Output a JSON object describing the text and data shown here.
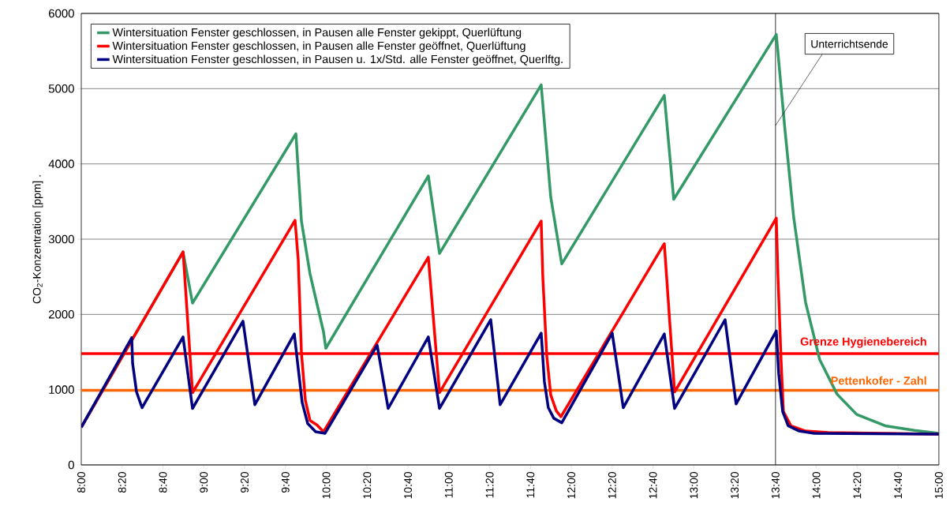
{
  "chart_data": {
    "type": "line",
    "ylabel": "CO$_{2}$-Konzentration [ppm] .",
    "xlim": [
      8,
      15
    ],
    "ylim": [
      0,
      6000
    ],
    "xticks": [
      {
        "value": 8,
        "label": "8:00"
      },
      {
        "value": 8.3333,
        "label": "8:20"
      },
      {
        "value": 8.6667,
        "label": "8:40"
      },
      {
        "value": 9,
        "label": "9:00"
      },
      {
        "value": 9.3333,
        "label": "9:20"
      },
      {
        "value": 9.6667,
        "label": "9:40"
      },
      {
        "value": 10,
        "label": "10:00"
      },
      {
        "value": 10.3333,
        "label": "10:20"
      },
      {
        "value": 10.6667,
        "label": "10:40"
      },
      {
        "value": 11,
        "label": "11:00"
      },
      {
        "value": 11.3333,
        "label": "11:20"
      },
      {
        "value": 11.6667,
        "label": "11:40"
      },
      {
        "value": 12,
        "label": "12:00"
      },
      {
        "value": 12.3333,
        "label": "12:20"
      },
      {
        "value": 12.6667,
        "label": "12:40"
      },
      {
        "value": 13,
        "label": "13:00"
      },
      {
        "value": 13.3333,
        "label": "13:20"
      },
      {
        "value": 13.6667,
        "label": "13:40"
      },
      {
        "value": 14,
        "label": "14:00"
      },
      {
        "value": 14.3333,
        "label": "14:20"
      },
      {
        "value": 14.6667,
        "label": "14:40"
      },
      {
        "value": 15,
        "label": "15:00"
      }
    ],
    "yticks": [
      0,
      1000,
      2000,
      3000,
      4000,
      5000,
      6000
    ],
    "grid": "y",
    "legend": "top left",
    "marker": "none",
    "line_style": "solid",
    "series": [
      {
        "name": "Wintersituation Fenster geschlossen, in Pausen alle Fenster gekippt, Querlüftung",
        "color": "#339966",
        "x": [
          8,
          8.831,
          8.908,
          9.752,
          9.797,
          9.867,
          9.977,
          9.996,
          10.833,
          10.924,
          11.754,
          11.832,
          11.922,
          12.759,
          12.836,
          13.673,
          13.744,
          13.815,
          13.912,
          14.027,
          14.169,
          14.33,
          14.562,
          14.8,
          15
        ],
        "values": [
          500,
          2830,
          2150,
          4400,
          3240,
          2540,
          1770,
          1550,
          3840,
          2810,
          5050,
          3560,
          2670,
          4910,
          3530,
          5720,
          4450,
          3290,
          2160,
          1400,
          940,
          670,
          520,
          460,
          420
        ]
      },
      {
        "name": "Wintersituation Fenster geschlossen, in Pausen alle Fenster geöffnet, Querlüftung",
        "color": "#ff0000",
        "x": [
          8,
          8.831,
          8.908,
          9.745,
          9.771,
          9.797,
          9.829,
          9.867,
          9.925,
          9.977,
          10.833,
          10.924,
          11.754,
          11.767,
          11.799,
          11.832,
          11.877,
          11.915,
          12.759,
          12.843,
          13.673,
          13.686,
          13.712,
          13.731,
          13.792,
          13.912,
          14.098,
          15
        ],
        "values": [
          500,
          2830,
          960,
          3250,
          2720,
          1490,
          860,
          590,
          530,
          440,
          2760,
          960,
          3240,
          2510,
          1460,
          930,
          720,
          640,
          2940,
          970,
          3280,
          2540,
          1400,
          710,
          520,
          450,
          430,
          410
        ]
      },
      {
        "name": "Wintersituation Fenster geschlossen, in Pausen u. 1x/Std. alle Fenster geöffnet, Querlftg.",
        "color": "#000080",
        "x": [
          8,
          8.412,
          8.419,
          8.451,
          8.496,
          8.831,
          8.908,
          9.32,
          9.417,
          9.739,
          9.771,
          9.803,
          9.848,
          9.913,
          9.99,
          10.415,
          10.505,
          10.833,
          10.924,
          11.342,
          11.419,
          11.754,
          11.78,
          11.812,
          11.857,
          11.922,
          12.334,
          12.424,
          12.759,
          12.843,
          13.255,
          13.345,
          13.673,
          13.693,
          13.725,
          13.77,
          13.86,
          13.982,
          15
        ],
        "values": [
          500,
          1690,
          1350,
          970,
          760,
          1700,
          750,
          1910,
          800,
          1740,
          1280,
          830,
          550,
          440,
          420,
          1590,
          750,
          1700,
          750,
          1930,
          800,
          1750,
          1110,
          760,
          620,
          560,
          1750,
          760,
          1740,
          750,
          1930,
          810,
          1780,
          1210,
          710,
          520,
          450,
          420,
          410
        ]
      }
    ],
    "ref_lines": [
      {
        "axis": "y",
        "value": 1480,
        "label": "Grenze Hygienebereich",
        "color": "#ff0000"
      },
      {
        "axis": "y",
        "value": 990,
        "label": "Pettenkofer - Zahl",
        "color": "#ff6600"
      },
      {
        "axis": "x",
        "value": 13.6667,
        "label": "Unterrichtsende",
        "color": "#000000"
      }
    ]
  }
}
